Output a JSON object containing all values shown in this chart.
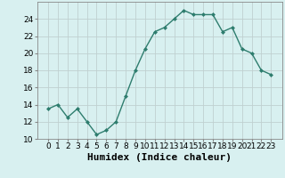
{
  "x": [
    0,
    1,
    2,
    3,
    4,
    5,
    6,
    7,
    8,
    9,
    10,
    11,
    12,
    13,
    14,
    15,
    16,
    17,
    18,
    19,
    20,
    21,
    22,
    23
  ],
  "y": [
    13.5,
    14.0,
    12.5,
    13.5,
    12.0,
    10.5,
    11.0,
    12.0,
    15.0,
    18.0,
    20.5,
    22.5,
    23.0,
    24.0,
    25.0,
    24.5,
    24.5,
    24.5,
    22.5,
    23.0,
    20.5,
    20.0,
    18.0,
    17.5
  ],
  "xlabel": "Humidex (Indice chaleur)",
  "ylim": [
    10,
    26
  ],
  "yticks": [
    10,
    12,
    14,
    16,
    18,
    20,
    22,
    24
  ],
  "xticks": [
    0,
    1,
    2,
    3,
    4,
    5,
    6,
    7,
    8,
    9,
    10,
    11,
    12,
    13,
    14,
    15,
    16,
    17,
    18,
    19,
    20,
    21,
    22,
    23
  ],
  "line_color": "#2e7d6e",
  "marker": "D",
  "marker_size": 2.0,
  "bg_color": "#d8f0f0",
  "grid_color": "#c0d0d0",
  "tick_label_fontsize": 6.5,
  "xlabel_fontsize": 8,
  "line_width": 1.0
}
